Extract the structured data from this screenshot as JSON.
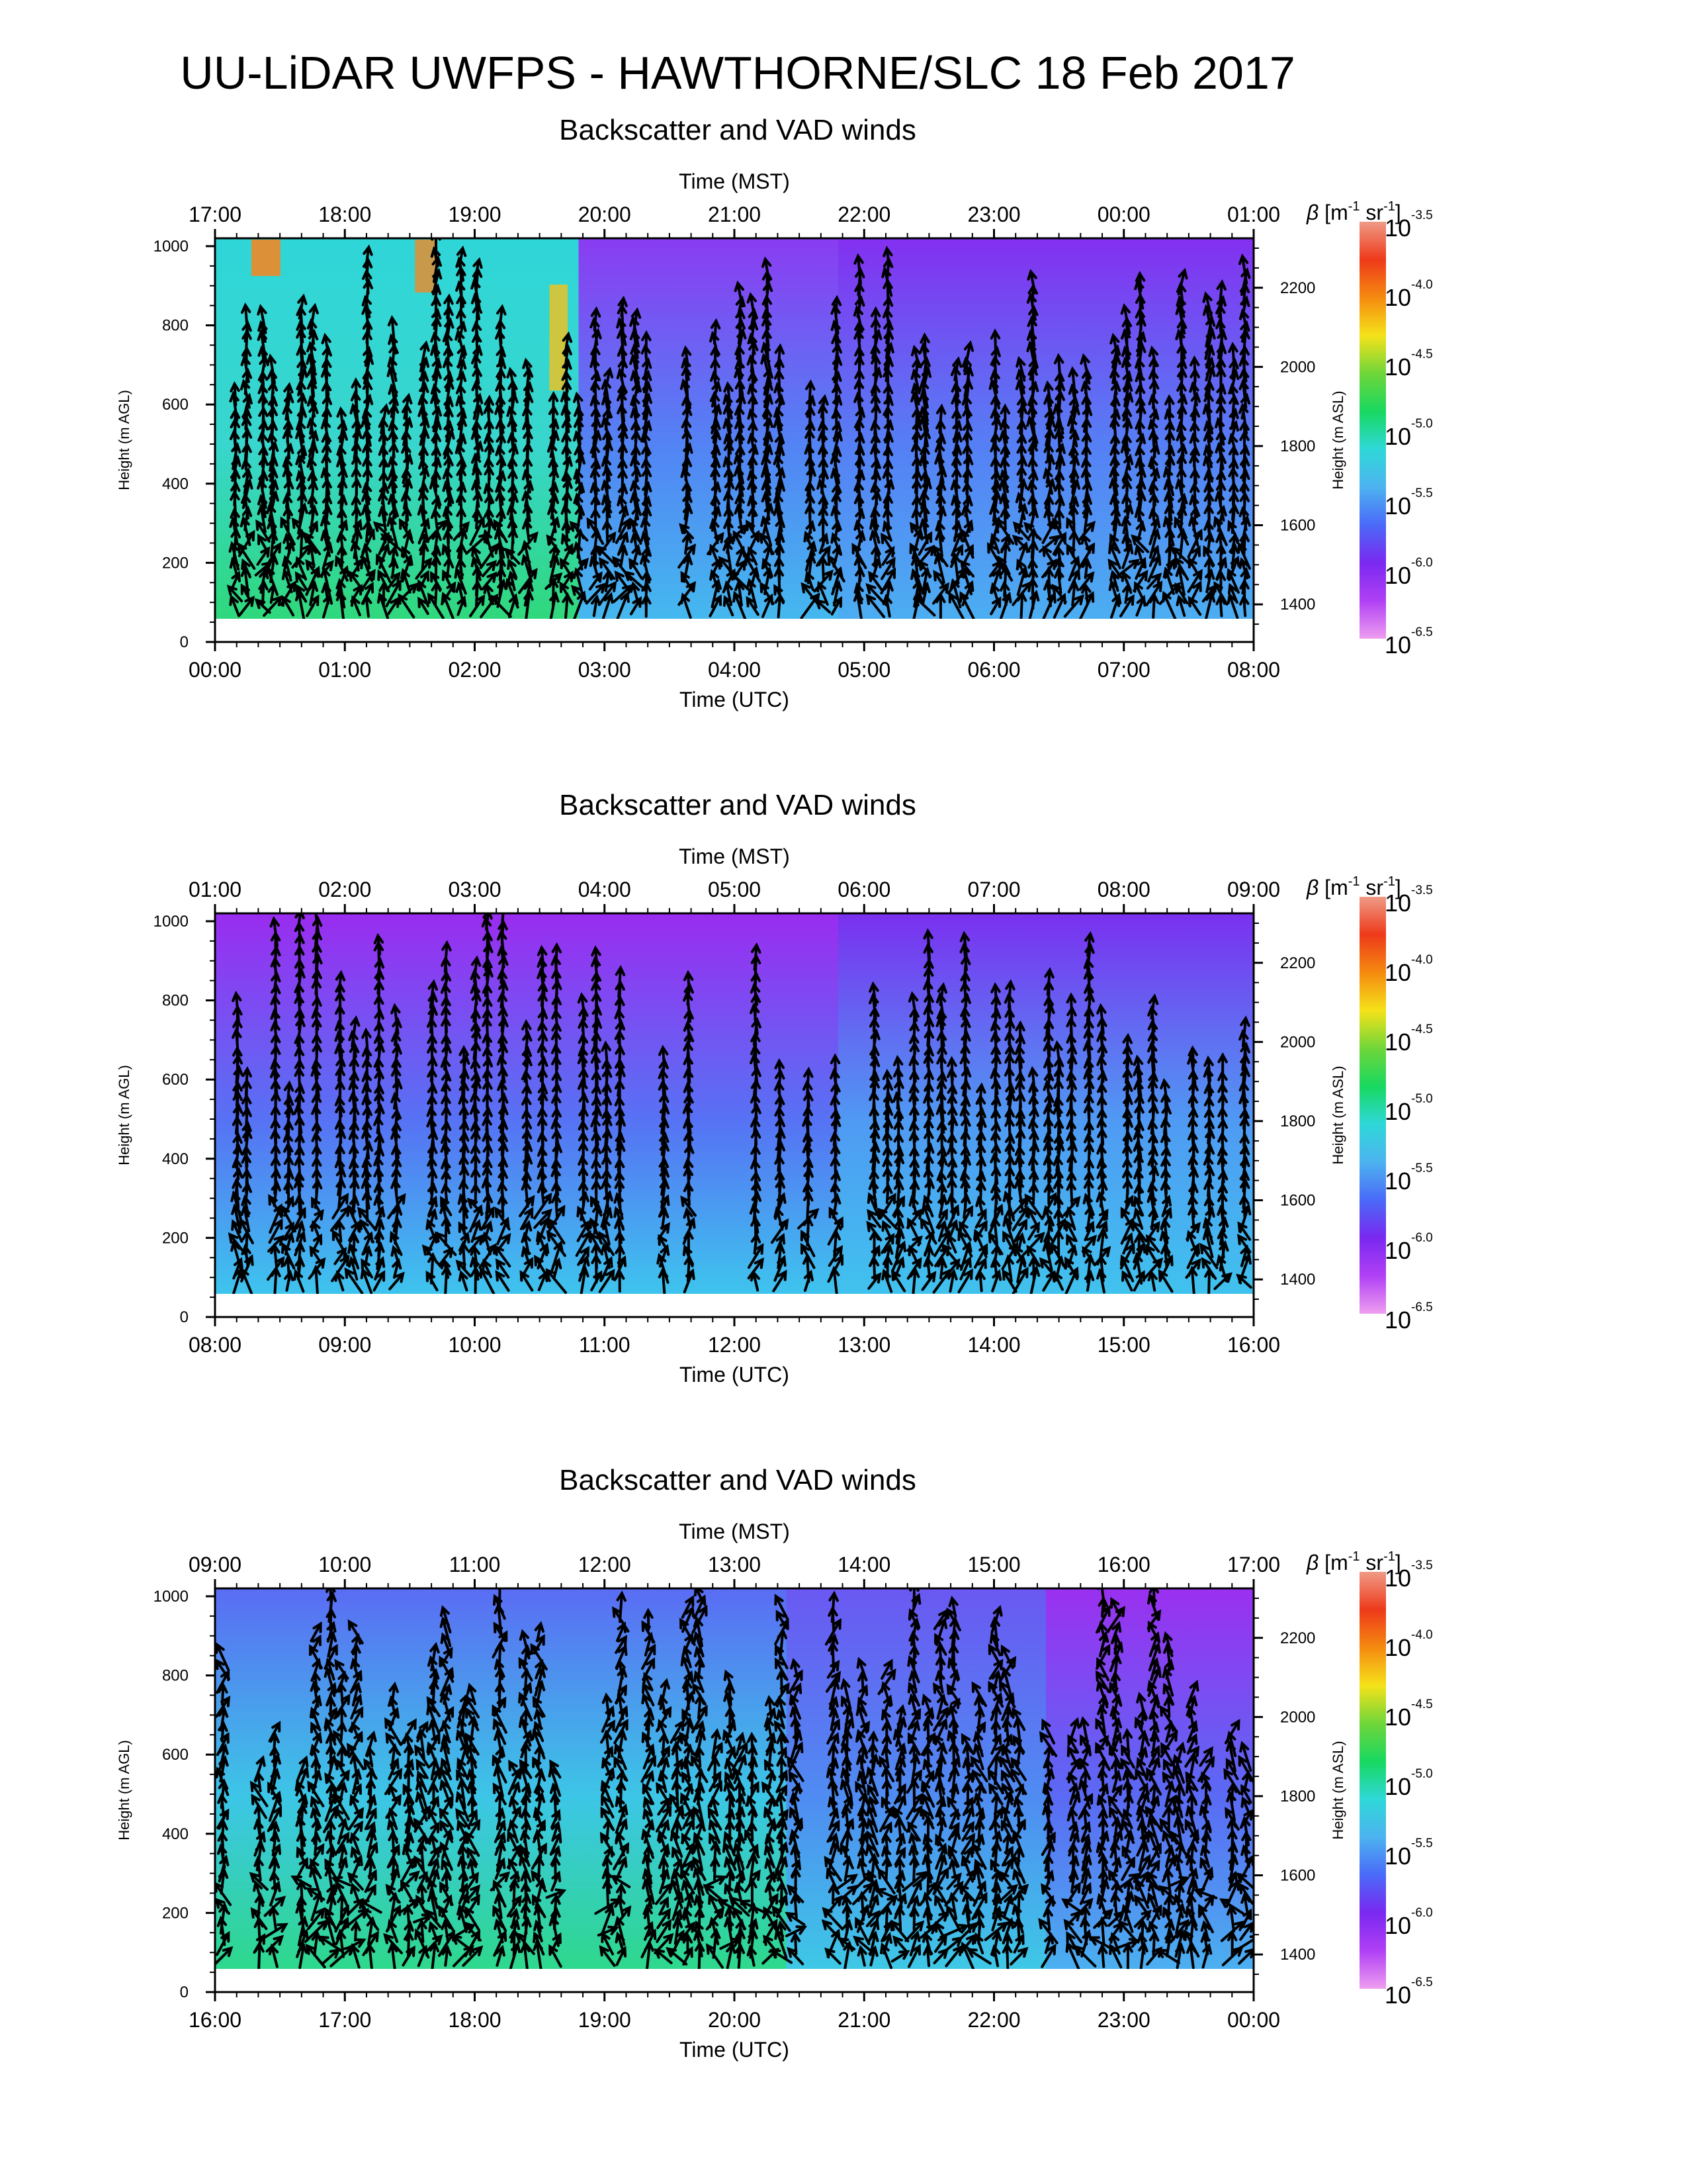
{
  "title": "UU-LiDAR UWFPS - HAWTHORNE/SLC 18 Feb 2017",
  "colorbar": {
    "label": "β [m⁻¹ sr⁻¹]",
    "label_main": "[m",
    "label_sup1": "-1",
    "label_mid": " sr",
    "label_sup2": "-1",
    "label_end": "]",
    "symbol": "β",
    "base": "10",
    "exponents": [
      "-3.5",
      "-4.0",
      "-4.5",
      "-5.0",
      "-5.5",
      "-6.0",
      "-6.5"
    ],
    "colors": [
      "#ef9a86",
      "#ee3a1a",
      "#f58a10",
      "#f5e21a",
      "#6fd63a",
      "#18d860",
      "#2ed8d8",
      "#4db3f0",
      "#4a6af8",
      "#7a28f0",
      "#b040f5",
      "#ee9ef0"
    ]
  },
  "chart_data": [
    {
      "type": "heatmap",
      "title": "Backscatter and VAD winds",
      "top_axis_label": "Time (MST)",
      "bottom_axis_label": "Time (UTC)",
      "left_axis_label": "Height (m AGL)",
      "right_axis_label": "Height (m ASL)",
      "mst_ticks": [
        "17:00",
        "18:00",
        "19:00",
        "20:00",
        "21:00",
        "22:00",
        "23:00",
        "00:00",
        "01:00"
      ],
      "utc_ticks": [
        "00:00",
        "01:00",
        "02:00",
        "03:00",
        "04:00",
        "05:00",
        "06:00",
        "07:00",
        "08:00"
      ],
      "agl_ticks": [
        0,
        200,
        400,
        600,
        800,
        1000
      ],
      "asl_ticks": [
        1400,
        1600,
        1800,
        2000,
        2200
      ],
      "ylim_agl": [
        0,
        1020
      ],
      "ylim_asl": [
        1305,
        2325
      ],
      "arrow_density": 0.9,
      "arrow_slant": 0.25,
      "background": [
        {
          "t_start": 0.0,
          "t_end": 0.35,
          "low": "#2fd87c",
          "mid": "#38d6cc",
          "high": "#2fd6d8",
          "hot": "#f08a28"
        },
        {
          "t_start": 0.35,
          "t_end": 0.6,
          "low": "#45b8ef",
          "mid": "#5284f4",
          "high": "#8a3cf2",
          "hot": ""
        },
        {
          "t_start": 0.6,
          "t_end": 1.0,
          "low": "#4caef2",
          "mid": "#5580f5",
          "high": "#8330f0",
          "hot": ""
        }
      ]
    },
    {
      "type": "heatmap",
      "title": "Backscatter and VAD winds",
      "top_axis_label": "Time (MST)",
      "bottom_axis_label": "Time (UTC)",
      "left_axis_label": "Height (m AGL)",
      "right_axis_label": "Height (m ASL)",
      "mst_ticks": [
        "01:00",
        "02:00",
        "03:00",
        "04:00",
        "05:00",
        "06:00",
        "07:00",
        "08:00",
        "09:00"
      ],
      "utc_ticks": [
        "08:00",
        "09:00",
        "10:00",
        "11:00",
        "12:00",
        "13:00",
        "14:00",
        "15:00",
        "16:00"
      ],
      "agl_ticks": [
        0,
        200,
        400,
        600,
        800,
        1000
      ],
      "asl_ticks": [
        1400,
        1600,
        1800,
        2000,
        2200
      ],
      "ylim_agl": [
        0,
        1020
      ],
      "ylim_asl": [
        1305,
        2325
      ],
      "arrow_density": 0.75,
      "arrow_slant": 0.15,
      "background": [
        {
          "t_start": 0.0,
          "t_end": 0.6,
          "low": "#3ec4ee",
          "mid": "#5673f4",
          "high": "#9a2cf0",
          "hot": ""
        },
        {
          "t_start": 0.6,
          "t_end": 1.0,
          "low": "#40c2ee",
          "mid": "#4f9af3",
          "high": "#7a30f0",
          "hot": ""
        }
      ]
    },
    {
      "type": "heatmap",
      "title": "Backscatter and VAD winds",
      "top_axis_label": "Time (MST)",
      "bottom_axis_label": "Time (UTC)",
      "left_axis_label": "Height (m AGL)",
      "right_axis_label": "Height (m ASL)",
      "mst_ticks": [
        "09:00",
        "10:00",
        "11:00",
        "12:00",
        "13:00",
        "14:00",
        "15:00",
        "16:00",
        "17:00"
      ],
      "utc_ticks": [
        "16:00",
        "17:00",
        "18:00",
        "19:00",
        "20:00",
        "21:00",
        "22:00",
        "23:00",
        "00:00"
      ],
      "agl_ticks": [
        0,
        200,
        400,
        600,
        800,
        1000
      ],
      "asl_ticks": [
        1400,
        1600,
        1800,
        2000,
        2200
      ],
      "ylim_agl": [
        0,
        1020
      ],
      "ylim_asl": [
        1305,
        2325
      ],
      "arrow_density": 0.8,
      "arrow_slant": 0.6,
      "background": [
        {
          "t_start": 0.0,
          "t_end": 0.55,
          "low": "#2ed88c",
          "mid": "#3cc6e6",
          "high": "#5a6cf4",
          "hot": ""
        },
        {
          "t_start": 0.55,
          "t_end": 0.8,
          "low": "#3ec8e6",
          "mid": "#4f8cf2",
          "high": "#6a58f2",
          "hot": ""
        },
        {
          "t_start": 0.8,
          "t_end": 1.0,
          "low": "#4bb0f0",
          "mid": "#5a6af4",
          "high": "#9a30f0",
          "hot": ""
        }
      ]
    }
  ]
}
